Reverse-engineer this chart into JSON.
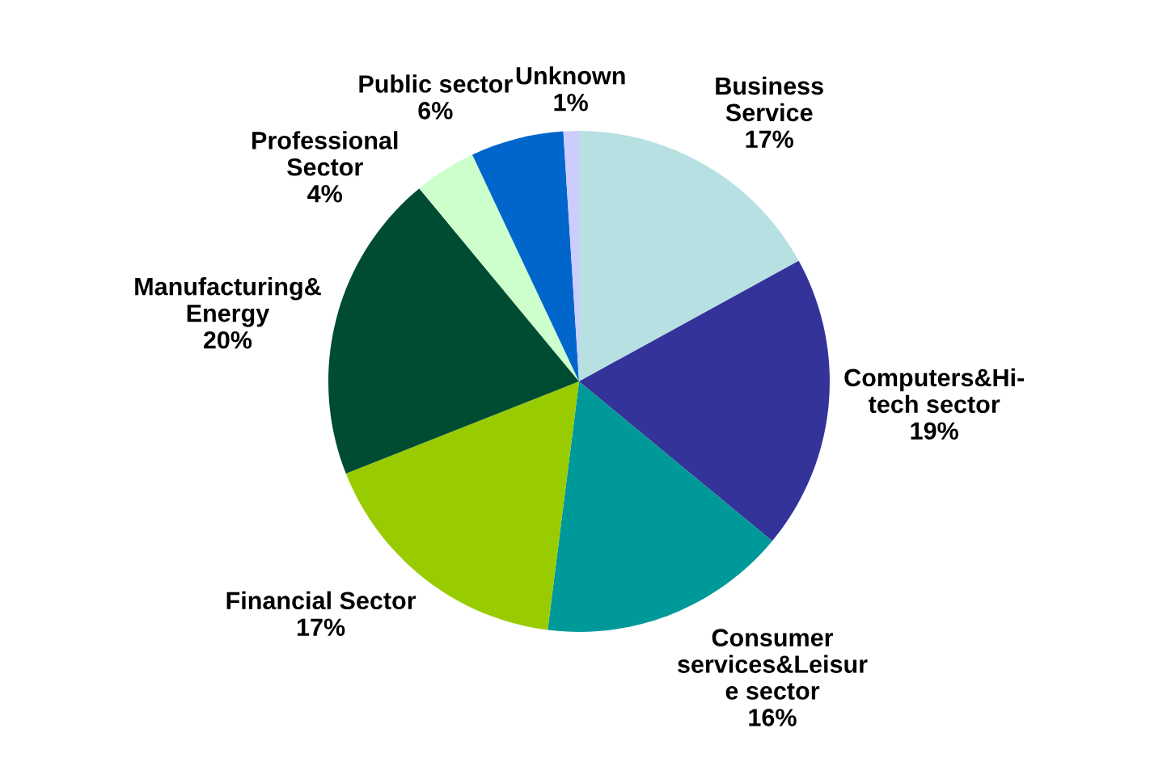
{
  "chart_data": {
    "type": "pie",
    "categories": [
      "Business\nService",
      "Computers&Hi-\ntech sector",
      "Consumer\nservices&Leisur\ne sector",
      "Financial Sector",
      "Manufacturing&\nEnergy",
      "Professional\nSector",
      "Public sector",
      "Unknown"
    ],
    "values": [
      17,
      19,
      16,
      17,
      20,
      4,
      6,
      1
    ],
    "value_labels": [
      "17%",
      "19%",
      "16%",
      "17%",
      "20%",
      "4%",
      "6%",
      "1%"
    ],
    "colors": [
      "#b7e0e3",
      "#333399",
      "#009999",
      "#99cc00",
      "#004c33",
      "#ccffcc",
      "#0066cc",
      "#ccccff"
    ]
  }
}
